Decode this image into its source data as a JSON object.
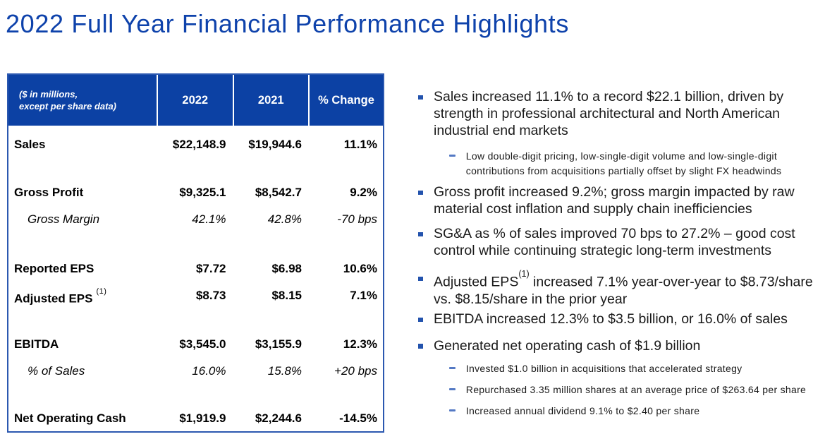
{
  "slide": {
    "title": "2022 Full Year Financial Performance Highlights"
  },
  "colors": {
    "title_blue": "#0e42ab",
    "table_header_blue": "#0c41a4",
    "table_border_blue": "#2b58b0",
    "bullet_square_blue": "#2353ad",
    "sub_dash_blue": "#5479c4",
    "body_text": "#1a1a1a",
    "header_text": "#ffffff"
  },
  "table": {
    "header": {
      "note_line1": "($ in millions,",
      "note_line2": "except per share data)",
      "columns": [
        "2022",
        "2021",
        "% Change"
      ]
    },
    "rows": [
      {
        "label": "Sales",
        "y2022": "$22,148.9",
        "y2021": "$19,944.6",
        "change": "11.1%"
      },
      {
        "label": "Gross Profit",
        "y2022": "$9,325.1",
        "y2021": "$8,542.7",
        "change": "9.2%"
      },
      {
        "label": "Gross Margin",
        "y2022": "42.1%",
        "y2021": "42.8%",
        "change": "-70 bps"
      },
      {
        "label": "Reported EPS",
        "y2022": "$7.72",
        "y2021": "$6.98",
        "change": "10.6%"
      },
      {
        "label": "Adjusted EPS",
        "footnote": "(1)",
        "y2022": "$8.73",
        "y2021": "$8.15",
        "change": "7.1%"
      },
      {
        "label": "EBITDA",
        "y2022": "$3,545.0",
        "y2021": "$3,155.9",
        "change": "12.3%"
      },
      {
        "label": "% of Sales",
        "y2022": "16.0%",
        "y2021": "15.8%",
        "change": "+20 bps"
      },
      {
        "label": "Net Operating Cash",
        "y2022": "$1,919.9",
        "y2021": "$2,244.6",
        "change": "-14.5%"
      }
    ]
  },
  "bullets": {
    "b1": "Sales increased 11.1% to a record $22.1 billion, driven by strength in professional architectural and North American industrial end markets",
    "b1_sub": "Low double-digit pricing, low-single-digit volume and low-single-digit contributions from acquisitions partially offset by slight FX headwinds",
    "b2": "Gross profit increased 9.2%; gross margin impacted by raw material cost inflation and supply chain inefficiencies",
    "b3": "SG&A as % of sales improved 70 bps to 27.2% – good cost control while continuing strategic long-term investments",
    "b4_pre": "Adjusted EPS",
    "b4_sup": "(1)",
    "b4_post": " increased 7.1% year-over-year to $8.73/share vs. $8.15/share in the prior year",
    "b5": "EBITDA increased 12.3% to $3.5 billion, or 16.0% of sales",
    "b6": "Generated net operating cash of $1.9 billion",
    "b6_subs": [
      "Invested $1.0 billion in acquisitions that accelerated strategy",
      "Repurchased 3.35 million shares at an average price of $263.64 per share",
      "Increased annual dividend 9.1% to $2.40 per share"
    ]
  }
}
